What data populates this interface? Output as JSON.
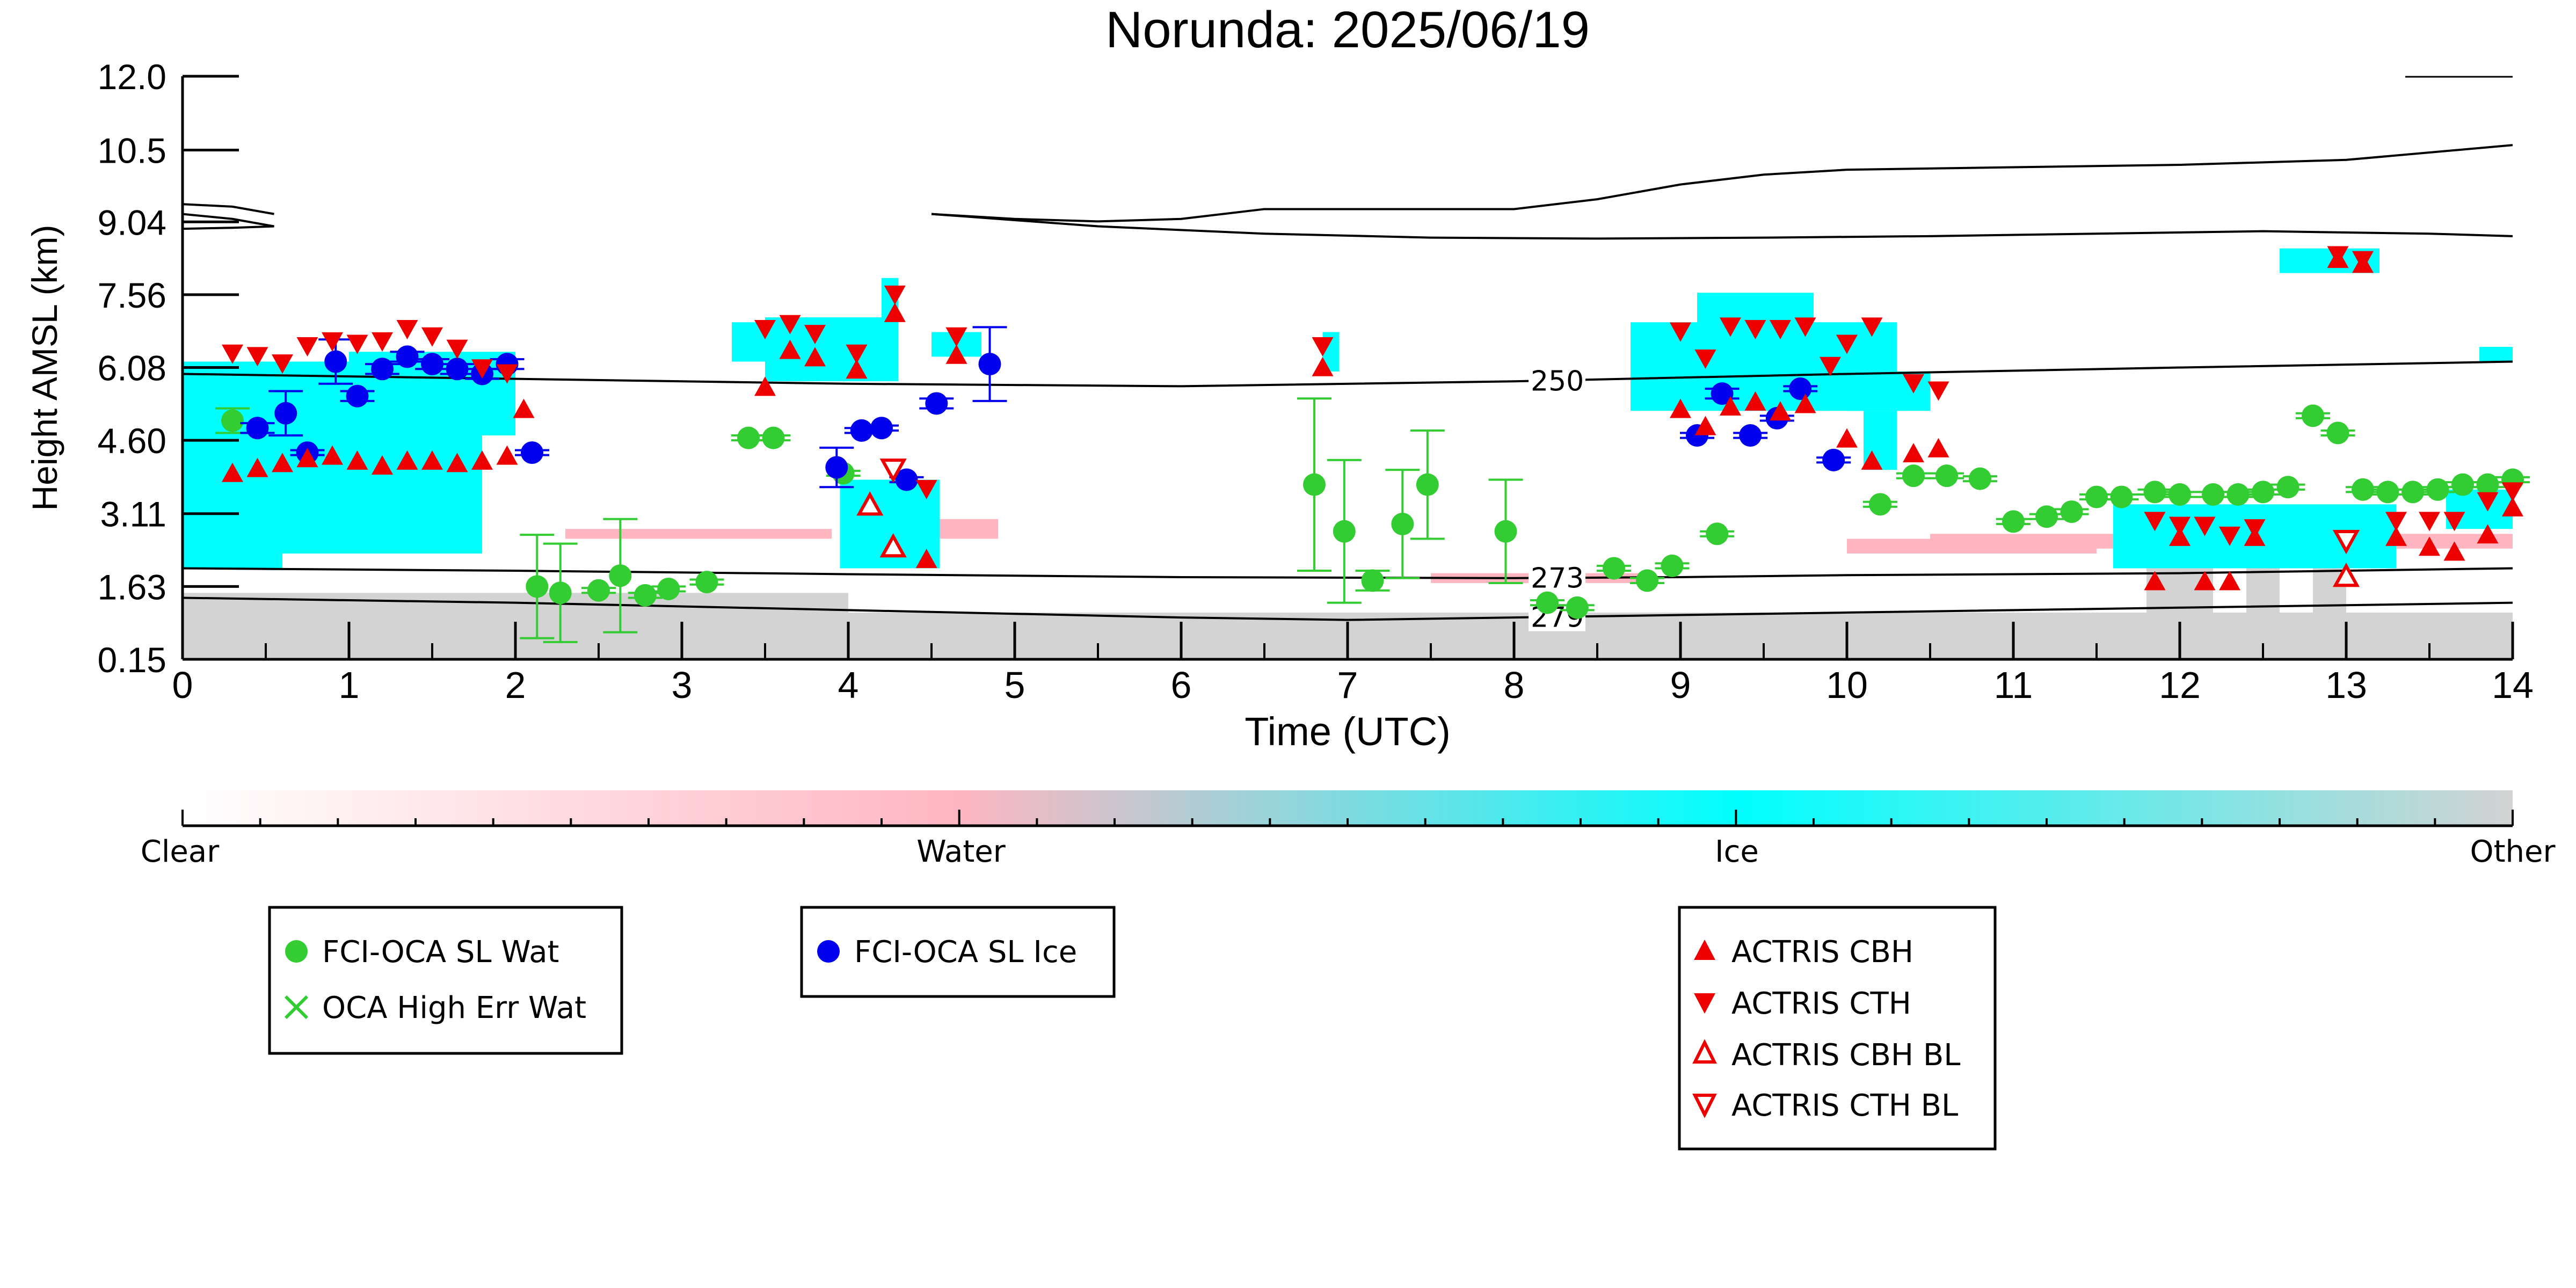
{
  "chart_data": {
    "type": "scatter",
    "title": "Norunda: 2025/06/19",
    "xlabel": "Time (UTC)",
    "ylabel": "Height AMSL (km)",
    "xlim": [
      0,
      14
    ],
    "ylim": [
      0.15,
      12.0
    ],
    "x_ticks": [
      "0",
      "1",
      "2",
      "3",
      "4",
      "5",
      "6",
      "7",
      "8",
      "9",
      "10",
      "11",
      "12",
      "13",
      "14"
    ],
    "y_ticks": [
      "0.15",
      "1.63",
      "3.11",
      "4.60",
      "6.08",
      "7.56",
      "9.04",
      "10.5",
      "12.0"
    ],
    "colorbar": {
      "labels": [
        "Clear",
        "Water",
        "Ice",
        "Other"
      ],
      "colors": {
        "clear": "#ffffff",
        "water": "#ffb6c1",
        "ice": "#00ffff",
        "other": "#d3d3d3"
      }
    },
    "contours": [
      {
        "label": "250",
        "label_x": 8.1,
        "points": [
          [
            0,
            5.95
          ],
          [
            2,
            5.85
          ],
          [
            4,
            5.75
          ],
          [
            6,
            5.7
          ],
          [
            8,
            5.8
          ],
          [
            10,
            5.95
          ],
          [
            12,
            6.08
          ],
          [
            14,
            6.2
          ]
        ]
      },
      {
        "label": "273",
        "label_x": 8.1,
        "points": [
          [
            0,
            2.0
          ],
          [
            2,
            1.95
          ],
          [
            4,
            1.88
          ],
          [
            6,
            1.82
          ],
          [
            8,
            1.8
          ],
          [
            9,
            1.82
          ],
          [
            10,
            1.86
          ],
          [
            12,
            1.9
          ],
          [
            14,
            2.0
          ]
        ]
      },
      {
        "label": "279",
        "label_x": 8.1,
        "points": [
          [
            0,
            1.4
          ],
          [
            2,
            1.3
          ],
          [
            4,
            1.15
          ],
          [
            6,
            1.0
          ],
          [
            7,
            0.95
          ],
          [
            8,
            1.0
          ],
          [
            9,
            1.05
          ],
          [
            10,
            1.1
          ],
          [
            12,
            1.2
          ],
          [
            14,
            1.3
          ]
        ]
      }
    ],
    "tropopause_lines": [
      [
        [
          0,
          9.4
        ],
        [
          0.3,
          9.35
        ],
        [
          0.55,
          9.2
        ]
      ],
      [
        [
          0,
          9.2
        ],
        [
          0.3,
          9.1
        ],
        [
          0.55,
          8.95
        ],
        [
          0.3,
          8.92
        ],
        [
          0,
          8.9
        ]
      ],
      [
        [
          4.5,
          9.2
        ],
        [
          5,
          9.1
        ],
        [
          5.5,
          9.05
        ],
        [
          6,
          9.1
        ],
        [
          6.5,
          9.3
        ],
        [
          7,
          9.3
        ],
        [
          7.5,
          9.3
        ],
        [
          8,
          9.3
        ],
        [
          8.5,
          9.5
        ],
        [
          9,
          9.8
        ],
        [
          9.5,
          10.0
        ],
        [
          10,
          10.1
        ],
        [
          11,
          10.15
        ],
        [
          12,
          10.2
        ],
        [
          13,
          10.3
        ],
        [
          14,
          10.6
        ]
      ],
      [
        [
          4.5,
          9.2
        ],
        [
          5.5,
          8.95
        ],
        [
          6.5,
          8.8
        ],
        [
          7.5,
          8.72
        ],
        [
          8.5,
          8.7
        ],
        [
          9.5,
          8.72
        ],
        [
          10.5,
          8.75
        ],
        [
          11.5,
          8.8
        ],
        [
          12.5,
          8.85
        ],
        [
          13.5,
          8.8
        ],
        [
          14,
          8.75
        ]
      ]
    ],
    "series": [
      {
        "name": "FCI-OCA SL Wat",
        "color": "#33cc33",
        "marker": "circle",
        "points": [
          [
            0.3,
            5.0,
            0.25
          ],
          [
            2.13,
            1.63,
            1.05
          ],
          [
            2.27,
            1.5,
            1.0
          ],
          [
            2.5,
            1.55,
            0.05
          ],
          [
            2.63,
            1.85,
            1.15
          ],
          [
            2.78,
            1.45,
            0.05
          ],
          [
            2.92,
            1.58,
            0.05
          ],
          [
            3.15,
            1.72,
            0.05
          ],
          [
            3.4,
            4.65,
            0.05
          ],
          [
            3.55,
            4.65,
            0.05
          ],
          [
            3.97,
            3.93,
            0.05
          ],
          [
            6.8,
            3.7,
            1.75
          ],
          [
            6.98,
            2.75,
            1.45
          ],
          [
            7.15,
            1.75,
            0.2
          ],
          [
            7.33,
            2.9,
            1.1
          ],
          [
            7.48,
            3.7,
            1.1
          ],
          [
            7.95,
            2.75,
            1.05
          ],
          [
            8.2,
            1.3,
            0.05
          ],
          [
            8.38,
            1.2,
            0.05
          ],
          [
            8.6,
            2.0,
            0.05
          ],
          [
            8.8,
            1.75,
            0.05
          ],
          [
            8.95,
            2.05,
            0.05
          ],
          [
            9.22,
            2.7,
            0.05
          ],
          [
            10.2,
            3.3,
            0.05
          ],
          [
            10.4,
            3.88,
            0.05
          ],
          [
            10.6,
            3.88,
            0.05
          ],
          [
            10.8,
            3.82,
            0.05
          ],
          [
            11.0,
            2.95,
            0.05
          ],
          [
            11.2,
            3.05,
            0.05
          ],
          [
            11.35,
            3.15,
            0.05
          ],
          [
            11.5,
            3.45,
            0.05
          ],
          [
            11.65,
            3.45,
            0.05
          ],
          [
            11.85,
            3.55,
            0.05
          ],
          [
            12.0,
            3.5,
            0.05
          ],
          [
            12.2,
            3.5,
            0.05
          ],
          [
            12.35,
            3.5,
            0.05
          ],
          [
            12.5,
            3.55,
            0.05
          ],
          [
            12.65,
            3.65,
            0.05
          ],
          [
            12.8,
            5.1,
            0.05
          ],
          [
            12.95,
            4.75,
            0.05
          ],
          [
            13.1,
            3.6,
            0.05
          ],
          [
            13.25,
            3.55,
            0.05
          ],
          [
            13.4,
            3.55,
            0.05
          ],
          [
            13.55,
            3.6,
            0.05
          ],
          [
            13.7,
            3.7,
            0.05
          ],
          [
            13.85,
            3.7,
            0.05
          ],
          [
            14.0,
            3.8,
            0.05
          ]
        ]
      },
      {
        "name": "FCI-OCA SL Ice",
        "color": "#0000ee",
        "marker": "circle",
        "points": [
          [
            0.45,
            4.85,
            0.1
          ],
          [
            0.62,
            5.15,
            0.45
          ],
          [
            0.75,
            4.35,
            0.05
          ],
          [
            0.92,
            6.2,
            0.45
          ],
          [
            1.05,
            5.5,
            0.1
          ],
          [
            1.2,
            6.05,
            0.1
          ],
          [
            1.35,
            6.3,
            0.1
          ],
          [
            1.5,
            6.15,
            0.1
          ],
          [
            1.65,
            6.05,
            0.1
          ],
          [
            1.8,
            5.95,
            0.1
          ],
          [
            1.95,
            6.15,
            0.1
          ],
          [
            2.1,
            4.35,
            0.05
          ],
          [
            3.93,
            4.05,
            0.4
          ],
          [
            4.08,
            4.8,
            0.05
          ],
          [
            4.2,
            4.85,
            0.05
          ],
          [
            4.35,
            3.8,
            0.05
          ],
          [
            4.53,
            5.35,
            0.1
          ],
          [
            4.85,
            6.15,
            0.75
          ],
          [
            9.1,
            4.7,
            0.05
          ],
          [
            9.25,
            5.55,
            0.1
          ],
          [
            9.42,
            4.7,
            0.05
          ],
          [
            9.58,
            5.05,
            0.05
          ],
          [
            9.72,
            5.65,
            0.05
          ],
          [
            9.92,
            4.2,
            0.05
          ]
        ]
      },
      {
        "name": "ACTRIS CBH",
        "color": "#ee0000",
        "marker": "triangle-up",
        "points": [
          [
            0.3,
            3.95
          ],
          [
            0.45,
            4.05
          ],
          [
            0.6,
            4.15
          ],
          [
            0.75,
            4.25
          ],
          [
            0.9,
            4.3
          ],
          [
            1.05,
            4.2
          ],
          [
            1.2,
            4.1
          ],
          [
            1.35,
            4.2
          ],
          [
            1.5,
            4.2
          ],
          [
            1.65,
            4.15
          ],
          [
            1.8,
            4.2
          ],
          [
            1.95,
            4.3
          ],
          [
            2.05,
            5.25
          ],
          [
            3.5,
            5.7
          ],
          [
            3.65,
            6.45
          ],
          [
            3.8,
            6.3
          ],
          [
            4.05,
            6.05
          ],
          [
            4.28,
            7.2
          ],
          [
            4.47,
            2.2
          ],
          [
            4.65,
            6.35
          ],
          [
            6.85,
            6.1
          ],
          [
            9.0,
            5.25
          ],
          [
            9.15,
            4.9
          ],
          [
            9.3,
            5.3
          ],
          [
            9.45,
            5.4
          ],
          [
            9.6,
            5.2
          ],
          [
            9.75,
            5.35
          ],
          [
            10.0,
            4.65
          ],
          [
            10.15,
            4.2
          ],
          [
            10.4,
            4.35
          ],
          [
            10.55,
            4.45
          ],
          [
            11.85,
            1.75
          ],
          [
            12.0,
            2.65
          ],
          [
            12.15,
            1.75
          ],
          [
            12.3,
            1.75
          ],
          [
            12.45,
            2.65
          ],
          [
            12.95,
            8.3
          ],
          [
            13.1,
            8.2
          ],
          [
            13.3,
            2.65
          ],
          [
            13.5,
            2.45
          ],
          [
            13.65,
            2.35
          ],
          [
            13.85,
            2.7
          ],
          [
            14.0,
            3.25
          ]
        ]
      },
      {
        "name": "ACTRIS CTH",
        "color": "#ee0000",
        "marker": "triangle-down",
        "points": [
          [
            0.3,
            6.35
          ],
          [
            0.45,
            6.3
          ],
          [
            0.6,
            6.15
          ],
          [
            0.75,
            6.5
          ],
          [
            0.9,
            6.6
          ],
          [
            1.05,
            6.55
          ],
          [
            1.2,
            6.6
          ],
          [
            1.35,
            6.85
          ],
          [
            1.5,
            6.7
          ],
          [
            1.65,
            6.45
          ],
          [
            1.8,
            6.05
          ],
          [
            1.95,
            5.95
          ],
          [
            3.5,
            6.85
          ],
          [
            3.65,
            6.95
          ],
          [
            3.8,
            6.75
          ],
          [
            4.05,
            6.35
          ],
          [
            4.28,
            7.55
          ],
          [
            4.47,
            3.6
          ],
          [
            4.65,
            6.7
          ],
          [
            6.85,
            6.5
          ],
          [
            9.0,
            6.8
          ],
          [
            9.15,
            6.25
          ],
          [
            9.3,
            6.9
          ],
          [
            9.45,
            6.85
          ],
          [
            9.6,
            6.85
          ],
          [
            9.75,
            6.9
          ],
          [
            9.9,
            6.1
          ],
          [
            10.0,
            6.55
          ],
          [
            10.15,
            6.9
          ],
          [
            10.4,
            5.75
          ],
          [
            10.55,
            5.6
          ],
          [
            11.85,
            2.95
          ],
          [
            12.0,
            2.85
          ],
          [
            12.15,
            2.85
          ],
          [
            12.3,
            2.65
          ],
          [
            12.45,
            2.8
          ],
          [
            12.95,
            8.35
          ],
          [
            13.1,
            8.25
          ],
          [
            13.3,
            2.95
          ],
          [
            13.5,
            2.95
          ],
          [
            13.65,
            2.95
          ],
          [
            13.85,
            3.35
          ],
          [
            14.0,
            3.55
          ]
        ]
      },
      {
        "name": "ACTRIS CBH BL",
        "color": "#ee0000",
        "marker": "triangle-up-open",
        "points": [
          [
            4.13,
            3.3
          ],
          [
            4.27,
            2.45
          ],
          [
            13.0,
            1.85
          ]
        ]
      },
      {
        "name": "ACTRIS CTH BL",
        "color": "#ee0000",
        "marker": "triangle-down-open",
        "points": [
          [
            4.27,
            4.0
          ],
          [
            13.0,
            2.55
          ]
        ]
      }
    ],
    "cloud_mask": {
      "ice": [
        [
          0.0,
          1.8,
          2.3,
          6.2
        ],
        [
          0.0,
          0.6,
          2.0,
          3.8
        ],
        [
          1.0,
          2.0,
          4.7,
          6.4
        ],
        [
          3.3,
          3.8,
          6.2,
          7.0
        ],
        [
          3.5,
          4.3,
          5.8,
          7.1
        ],
        [
          4.2,
          4.3,
          7.1,
          7.9
        ],
        [
          4.5,
          4.8,
          6.3,
          6.8
        ],
        [
          3.95,
          4.55,
          2.0,
          3.8
        ],
        [
          6.85,
          6.95,
          6.0,
          6.8
        ],
        [
          8.7,
          10.3,
          5.2,
          7.0
        ],
        [
          9.1,
          9.8,
          6.8,
          7.6
        ],
        [
          10.0,
          10.5,
          5.2,
          6.0
        ],
        [
          10.1,
          10.3,
          4.0,
          5.2
        ],
        [
          11.6,
          13.3,
          2.0,
          3.3
        ],
        [
          12.6,
          13.2,
          8.0,
          8.5
        ],
        [
          13.6,
          14.0,
          2.8,
          3.6
        ],
        [
          13.8,
          14.0,
          6.2,
          6.5
        ]
      ],
      "water": [
        [
          0.0,
          1.2,
          2.45,
          2.8
        ],
        [
          2.3,
          3.9,
          2.6,
          2.8
        ],
        [
          4.4,
          4.9,
          2.6,
          3.0
        ],
        [
          10.5,
          14.0,
          2.4,
          2.7
        ],
        [
          7.5,
          8.8,
          1.7,
          1.9
        ],
        [
          10.0,
          11.5,
          2.3,
          2.6
        ]
      ],
      "other": [
        [
          0.0,
          14.0,
          0.15,
          1.1
        ],
        [
          0.0,
          4.0,
          1.1,
          1.5
        ],
        [
          11.8,
          12.2,
          1.0,
          2.5
        ],
        [
          12.4,
          12.6,
          1.0,
          2.5
        ],
        [
          12.8,
          13.0,
          1.0,
          2.4
        ]
      ]
    }
  }
}
